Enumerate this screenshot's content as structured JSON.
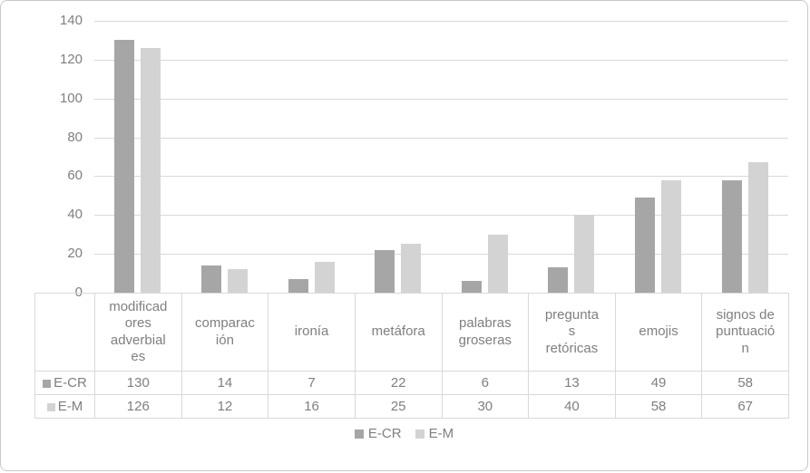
{
  "chart_data": {
    "type": "bar",
    "title": "",
    "xlabel": "",
    "ylabel": "",
    "categories": [
      "modificadores adverbiales",
      "comparación",
      "ironía",
      "metáfora",
      "palabras groseras",
      "preguntas retóricas",
      "emojis",
      "signos de puntuación"
    ],
    "series": [
      {
        "name": "E-CR",
        "color": "#a6a6a6",
        "values": [
          130,
          14,
          7,
          22,
          6,
          13,
          49,
          58
        ]
      },
      {
        "name": "E-M",
        "color": "#d3d3d3",
        "values": [
          126,
          12,
          16,
          25,
          30,
          40,
          58,
          67
        ]
      }
    ],
    "ylim": [
      0,
      140
    ],
    "ytick_step": 20,
    "ytick_labels": [
      "0",
      "20",
      "40",
      "60",
      "80",
      "100",
      "120",
      "140"
    ],
    "grid": true,
    "gridline_color": "#d9d9d9",
    "text_color": "#7f7f7f",
    "legend_position": "bottom",
    "show_data_table": true
  }
}
